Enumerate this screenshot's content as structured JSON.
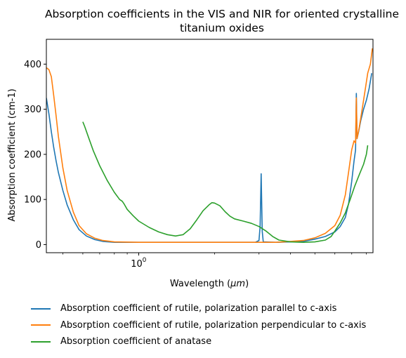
{
  "chart_data": {
    "type": "line",
    "title": "Absorption coefficients in the VIS and NIR for oriented crystalline titanium oxides",
    "title_lines": [
      "Absorption coefficients in the VIS and NIR for oriented crystalline",
      "titanium oxides"
    ],
    "xlabel": "Wavelength (μm)",
    "xlabel_main": "Wavelength (",
    "xlabel_unit": "μm",
    "xlabel_close": ")",
    "ylabel": "Absorption coefficient (cm-1)",
    "xscale": "log",
    "xlim": [
      0.43,
      8.5
    ],
    "ylim": [
      -18,
      455
    ],
    "xticks": [
      {
        "value": 1,
        "label": "10",
        "exp": "0"
      }
    ],
    "yticks": [
      0,
      100,
      200,
      300,
      400
    ],
    "grid": false,
    "legend_position": "below",
    "series": [
      {
        "name": "Absorption coefficient of rutile, polarization parallel to c-axis",
        "color": "#1f77b4",
        "points": [
          [
            0.43,
            325
          ],
          [
            0.44,
            290
          ],
          [
            0.45,
            250
          ],
          [
            0.46,
            215
          ],
          [
            0.47,
            185
          ],
          [
            0.48,
            160
          ],
          [
            0.5,
            120
          ],
          [
            0.52,
            88
          ],
          [
            0.55,
            55
          ],
          [
            0.58,
            33
          ],
          [
            0.62,
            19
          ],
          [
            0.67,
            11
          ],
          [
            0.72,
            7
          ],
          [
            0.8,
            5
          ],
          [
            1.0,
            5
          ],
          [
            1.5,
            5
          ],
          [
            2.0,
            5
          ],
          [
            2.6,
            5
          ],
          [
            2.9,
            5
          ],
          [
            3.0,
            9
          ],
          [
            3.03,
            40
          ],
          [
            3.06,
            157
          ],
          [
            3.09,
            30
          ],
          [
            3.12,
            6
          ],
          [
            3.5,
            5
          ],
          [
            4.0,
            6
          ],
          [
            4.5,
            7
          ],
          [
            5.0,
            12
          ],
          [
            5.5,
            18
          ],
          [
            6.0,
            28
          ],
          [
            6.3,
            40
          ],
          [
            6.6,
            60
          ],
          [
            6.8,
            90
          ],
          [
            7.0,
            140
          ],
          [
            7.15,
            185
          ],
          [
            7.25,
            210
          ],
          [
            7.3,
            335
          ],
          [
            7.35,
            235
          ],
          [
            7.45,
            250
          ],
          [
            7.6,
            275
          ],
          [
            7.8,
            300
          ],
          [
            8.0,
            320
          ],
          [
            8.2,
            345
          ],
          [
            8.4,
            380
          ]
        ]
      },
      {
        "name": "Absorption coefficient of rutile, polarization perpendicular to c-axis",
        "color": "#ff7f0e",
        "points": [
          [
            0.43,
            392
          ],
          [
            0.44,
            388
          ],
          [
            0.45,
            372
          ],
          [
            0.46,
            330
          ],
          [
            0.47,
            285
          ],
          [
            0.48,
            240
          ],
          [
            0.5,
            170
          ],
          [
            0.52,
            120
          ],
          [
            0.55,
            72
          ],
          [
            0.58,
            42
          ],
          [
            0.62,
            24
          ],
          [
            0.67,
            14
          ],
          [
            0.72,
            9
          ],
          [
            0.8,
            6
          ],
          [
            1.0,
            5
          ],
          [
            1.5,
            5
          ],
          [
            2.0,
            5
          ],
          [
            2.6,
            5
          ],
          [
            3.0,
            5
          ],
          [
            3.5,
            5
          ],
          [
            4.0,
            7
          ],
          [
            4.5,
            9
          ],
          [
            5.0,
            15
          ],
          [
            5.5,
            25
          ],
          [
            6.0,
            42
          ],
          [
            6.3,
            65
          ],
          [
            6.6,
            110
          ],
          [
            6.8,
            160
          ],
          [
            7.0,
            210
          ],
          [
            7.15,
            230
          ],
          [
            7.25,
            225
          ],
          [
            7.3,
            325
          ],
          [
            7.35,
            235
          ],
          [
            7.5,
            260
          ],
          [
            7.7,
            300
          ],
          [
            7.9,
            340
          ],
          [
            8.1,
            380
          ],
          [
            8.3,
            400
          ],
          [
            8.45,
            435
          ]
        ]
      },
      {
        "name": "Absorption coefficient of anatase",
        "color": "#2ca02c",
        "points": [
          [
            0.6,
            272
          ],
          [
            0.61,
            262
          ],
          [
            0.63,
            240
          ],
          [
            0.66,
            208
          ],
          [
            0.7,
            175
          ],
          [
            0.75,
            142
          ],
          [
            0.8,
            116
          ],
          [
            0.84,
            100
          ],
          [
            0.86,
            96
          ],
          [
            0.875,
            90
          ],
          [
            0.9,
            78
          ],
          [
            0.95,
            64
          ],
          [
            1.0,
            52
          ],
          [
            1.1,
            38
          ],
          [
            1.2,
            28
          ],
          [
            1.3,
            22
          ],
          [
            1.4,
            19
          ],
          [
            1.5,
            22
          ],
          [
            1.6,
            35
          ],
          [
            1.7,
            55
          ],
          [
            1.8,
            75
          ],
          [
            1.9,
            88
          ],
          [
            1.95,
            93
          ],
          [
            2.0,
            92
          ],
          [
            2.1,
            86
          ],
          [
            2.2,
            73
          ],
          [
            2.3,
            63
          ],
          [
            2.4,
            57
          ],
          [
            2.6,
            52
          ],
          [
            2.8,
            47
          ],
          [
            3.0,
            40
          ],
          [
            3.2,
            30
          ],
          [
            3.4,
            18
          ],
          [
            3.6,
            10
          ],
          [
            4.0,
            6
          ],
          [
            4.5,
            5
          ],
          [
            5.0,
            6
          ],
          [
            5.5,
            10
          ],
          [
            5.8,
            18
          ],
          [
            6.0,
            30
          ],
          [
            6.3,
            48
          ],
          [
            6.6,
            70
          ],
          [
            6.9,
            100
          ],
          [
            7.2,
            130
          ],
          [
            7.5,
            155
          ],
          [
            7.8,
            178
          ],
          [
            8.0,
            200
          ],
          [
            8.1,
            220
          ]
        ]
      }
    ]
  }
}
